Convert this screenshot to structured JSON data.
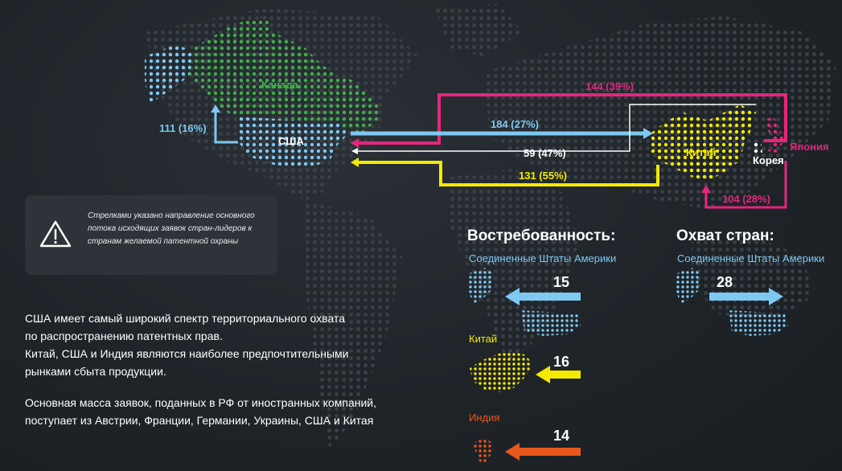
{
  "colors": {
    "background": "#1f2429",
    "usa": "#7ec8f2",
    "canada": "#3fae49",
    "china": "#f4ea00",
    "japan": "#e5267d",
    "india": "#e8581c",
    "white": "#ffffff"
  },
  "map": {
    "countries": {
      "canada": "Канада",
      "usa": "США",
      "china": "Китай",
      "korea": "Корея",
      "japan": "Япония"
    },
    "flows": {
      "usa_self": "111 (16%)",
      "usa_to_china": "184 (27%)",
      "japan_to_usa": "144 (39%)",
      "korea_to_usa": "59 (47%)",
      "china_to_usa": "131 (55%)",
      "japan_to_china": "104 (28%)"
    }
  },
  "note": {
    "icon": "warning-icon",
    "text": "Стрелками указано направление основного потока исходящих заявок стран-лидеров к странам желаемой патентной охраны"
  },
  "summary": {
    "paragraph1_line1": "США имеет самый широкий спектр территориального охвата",
    "paragraph1_line2": "по распространению патентных прав.",
    "paragraph1_line3": "Китай, США и Индия являются наиболее предпочтительными",
    "paragraph1_line4": "рынками сбыта продукции.",
    "paragraph2_line1": "Основная масса заявок, поданных в РФ от иностранных компаний,",
    "paragraph2_line2": "поступает из Австрии, Франции, Германии, Украины, США и Китая"
  },
  "demand": {
    "title": "Востребованность:",
    "usa_label": "Соединенные Штаты Америки",
    "usa_value": "15",
    "china_label": "Китай",
    "china_value": "16",
    "india_label": "Индия",
    "india_value": "14"
  },
  "coverage": {
    "title": "Охват стран:",
    "usa_label": "Соединенные Штаты Америки",
    "usa_value": "28"
  }
}
